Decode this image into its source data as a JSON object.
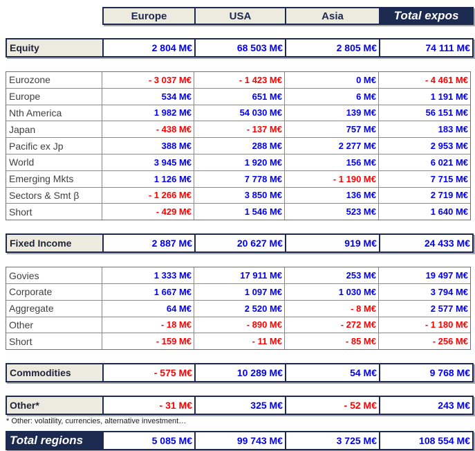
{
  "columns": [
    "Europe",
    "USA",
    "Asia",
    "Total expos"
  ],
  "sections": [
    {
      "type": "summary",
      "label": "Equity",
      "values": [
        "2 804 M€",
        "68 503 M€",
        "2 805 M€",
        "74 111 M€"
      ]
    },
    {
      "type": "detail",
      "rows": [
        {
          "label": "Eurozone",
          "values": [
            "- 3 037 M€",
            "- 1 423 M€",
            "0 M€",
            "- 4 461 M€"
          ]
        },
        {
          "label": "Europe",
          "values": [
            "534 M€",
            "651 M€",
            "6 M€",
            "1 191 M€"
          ]
        },
        {
          "label": "Nth America",
          "values": [
            "1 982 M€",
            "54 030 M€",
            "139 M€",
            "56 151 M€"
          ]
        },
        {
          "label": "Japan",
          "values": [
            "- 438 M€",
            "- 137 M€",
            "757 M€",
            "183 M€"
          ]
        },
        {
          "label": "Pacific ex Jp",
          "values": [
            "388 M€",
            "288 M€",
            "2 277 M€",
            "2 953 M€"
          ]
        },
        {
          "label": "World",
          "values": [
            "3 945 M€",
            "1 920 M€",
            "156 M€",
            "6 021 M€"
          ]
        },
        {
          "label": "Emerging Mkts",
          "values": [
            "1 126 M€",
            "7 778 M€",
            "- 1 190 M€",
            "7 715 M€"
          ]
        },
        {
          "label": "Sectors & Smt β",
          "values": [
            "- 1 266 M€",
            "3 850 M€",
            "136 M€",
            "2 719 M€"
          ]
        },
        {
          "label": "Short",
          "values": [
            "- 429 M€",
            "1 546 M€",
            "523 M€",
            "1 640 M€"
          ]
        }
      ]
    },
    {
      "type": "summary",
      "label": "Fixed Income",
      "values": [
        "2 887 M€",
        "20 627 M€",
        "919 M€",
        "24 433 M€"
      ]
    },
    {
      "type": "detail",
      "rows": [
        {
          "label": "Govies",
          "values": [
            "1 333 M€",
            "17 911 M€",
            "253 M€",
            "19 497 M€"
          ]
        },
        {
          "label": "Corporate",
          "values": [
            "1 667 M€",
            "1 097 M€",
            "1 030 M€",
            "3 794 M€"
          ]
        },
        {
          "label": "Aggregate",
          "values": [
            "64 M€",
            "2 520 M€",
            "- 8 M€",
            "2 577 M€"
          ]
        },
        {
          "label": "Other",
          "values": [
            "- 18 M€",
            "- 890 M€",
            "- 272 M€",
            "- 1 180 M€"
          ]
        },
        {
          "label": "Short",
          "values": [
            "- 159 M€",
            "- 11 M€",
            "- 85 M€",
            "- 256 M€"
          ]
        }
      ]
    },
    {
      "type": "summary",
      "label": "Commodities",
      "values": [
        "- 575 M€",
        "10 289 M€",
        "54 M€",
        "9 768 M€"
      ]
    },
    {
      "type": "summary",
      "label": "Other*",
      "values": [
        "- 31 M€",
        "325 M€",
        "- 52 M€",
        "243 M€"
      ]
    },
    {
      "type": "footnote",
      "text": "* Other: volatility, currencies, alternative investment…"
    },
    {
      "type": "total",
      "label": "Total regions",
      "values": [
        "5 085 M€",
        "99 743 M€",
        "3 725 M€",
        "108 554 M€"
      ]
    }
  ],
  "colors": {
    "navy": "#1C2A4F",
    "beige": "#EDEAE0",
    "positive_value": "#0000EE",
    "negative_value": "#FF0000",
    "detail_border": "#8A8A8A",
    "shadow": "#A9A9A9"
  },
  "chart_data": {
    "type": "table",
    "unit": "M€",
    "columns": [
      "Europe",
      "USA",
      "Asia",
      "Total expos"
    ],
    "rows": [
      {
        "label": "Equity",
        "role": "summary",
        "values": [
          2804,
          68503,
          2805,
          74111
        ]
      },
      {
        "label": "Eurozone",
        "role": "detail",
        "values": [
          -3037,
          -1423,
          0,
          -4461
        ]
      },
      {
        "label": "Europe",
        "role": "detail",
        "values": [
          534,
          651,
          6,
          1191
        ]
      },
      {
        "label": "Nth America",
        "role": "detail",
        "values": [
          1982,
          54030,
          139,
          56151
        ]
      },
      {
        "label": "Japan",
        "role": "detail",
        "values": [
          -438,
          -137,
          757,
          183
        ]
      },
      {
        "label": "Pacific ex Jp",
        "role": "detail",
        "values": [
          388,
          288,
          2277,
          2953
        ]
      },
      {
        "label": "World",
        "role": "detail",
        "values": [
          3945,
          1920,
          156,
          6021
        ]
      },
      {
        "label": "Emerging Mkts",
        "role": "detail",
        "values": [
          1126,
          7778,
          -1190,
          7715
        ]
      },
      {
        "label": "Sectors & Smt β",
        "role": "detail",
        "values": [
          -1266,
          3850,
          136,
          2719
        ]
      },
      {
        "label": "Short (Equity)",
        "role": "detail",
        "values": [
          -429,
          1546,
          523,
          1640
        ]
      },
      {
        "label": "Fixed Income",
        "role": "summary",
        "values": [
          2887,
          20627,
          919,
          24433
        ]
      },
      {
        "label": "Govies",
        "role": "detail",
        "values": [
          1333,
          17911,
          253,
          19497
        ]
      },
      {
        "label": "Corporate",
        "role": "detail",
        "values": [
          1667,
          1097,
          1030,
          3794
        ]
      },
      {
        "label": "Aggregate",
        "role": "detail",
        "values": [
          64,
          2520,
          -8,
          2577
        ]
      },
      {
        "label": "Other (FI)",
        "role": "detail",
        "values": [
          -18,
          -890,
          -272,
          -1180
        ]
      },
      {
        "label": "Short (FI)",
        "role": "detail",
        "values": [
          -159,
          -11,
          -85,
          -256
        ]
      },
      {
        "label": "Commodities",
        "role": "summary",
        "values": [
          -575,
          10289,
          54,
          9768
        ]
      },
      {
        "label": "Other*",
        "role": "summary",
        "values": [
          -31,
          325,
          -52,
          243
        ]
      },
      {
        "label": "Total regions",
        "role": "total",
        "values": [
          5085,
          99743,
          3725,
          108554
        ]
      }
    ]
  }
}
